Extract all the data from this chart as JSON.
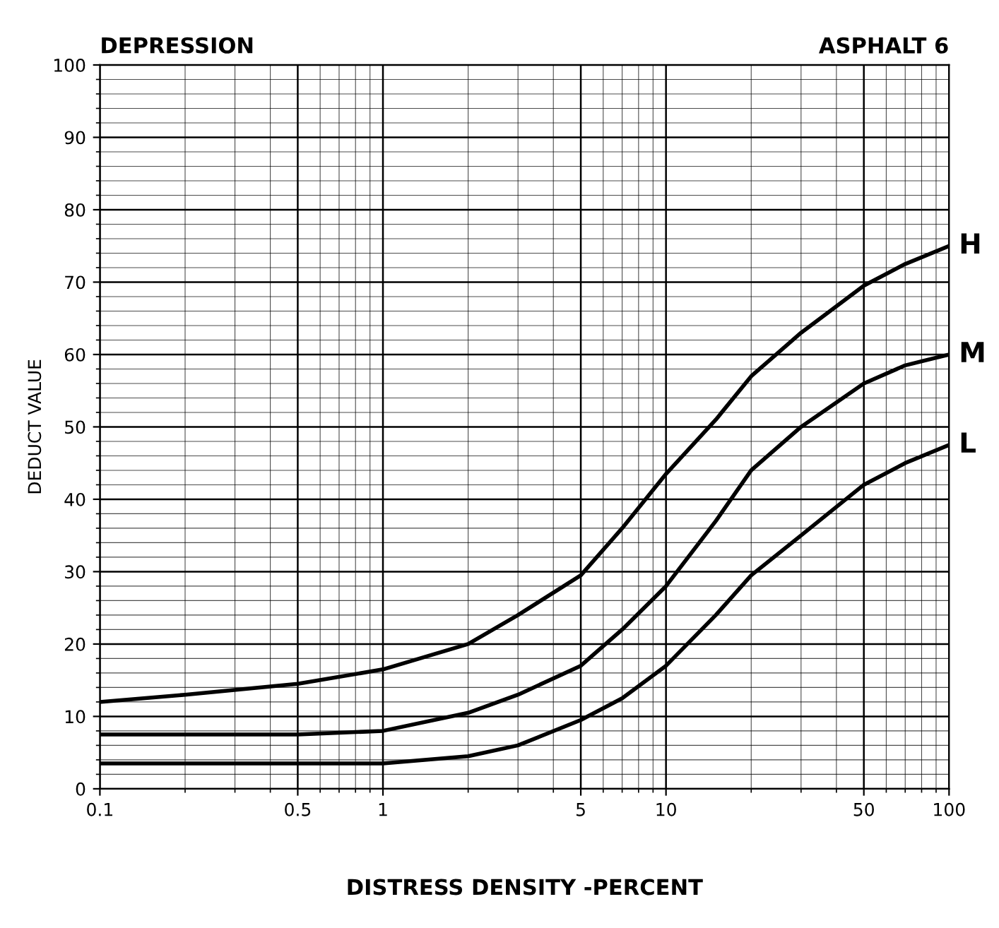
{
  "chart_data": {
    "type": "line",
    "title": "DEPRESSION",
    "xlabel": "DISTRESS DENSITY -PERCENT",
    "ylabel": "DEDUCT VALUE",
    "annotations": [
      "ASPHALT 6"
    ],
    "log": "x",
    "xlim": [
      0.1,
      100
    ],
    "xticks": [
      0.1,
      0.5,
      1,
      5,
      10,
      50,
      100
    ],
    "ylim": [
      0,
      100
    ],
    "yticks": [
      0,
      10,
      20,
      30,
      40,
      50,
      60,
      70,
      80,
      90,
      100
    ],
    "grid": true,
    "legend": false,
    "marker": "none",
    "line_style": "solid",
    "x": [
      0.1,
      0.2,
      0.5,
      1,
      2,
      3,
      5,
      7,
      10,
      15,
      20,
      30,
      50,
      70,
      100
    ],
    "series": [
      {
        "name": "H",
        "color": "#000000",
        "values": [
          12,
          13,
          14.5,
          16.5,
          20,
          24,
          29.5,
          36,
          43.5,
          51,
          57,
          63,
          69.5,
          72.5,
          75
        ]
      },
      {
        "name": "M",
        "color": "#000000",
        "values": [
          7.5,
          7.5,
          7.5,
          8,
          10.5,
          13,
          17,
          22,
          28,
          37,
          44,
          50,
          56,
          58.5,
          60
        ]
      },
      {
        "name": "L",
        "color": "#000000",
        "values": [
          3.5,
          3.5,
          3.5,
          3.5,
          4.5,
          6,
          9.5,
          12.5,
          17,
          24,
          29.5,
          35,
          42,
          45,
          47.5
        ]
      }
    ]
  }
}
